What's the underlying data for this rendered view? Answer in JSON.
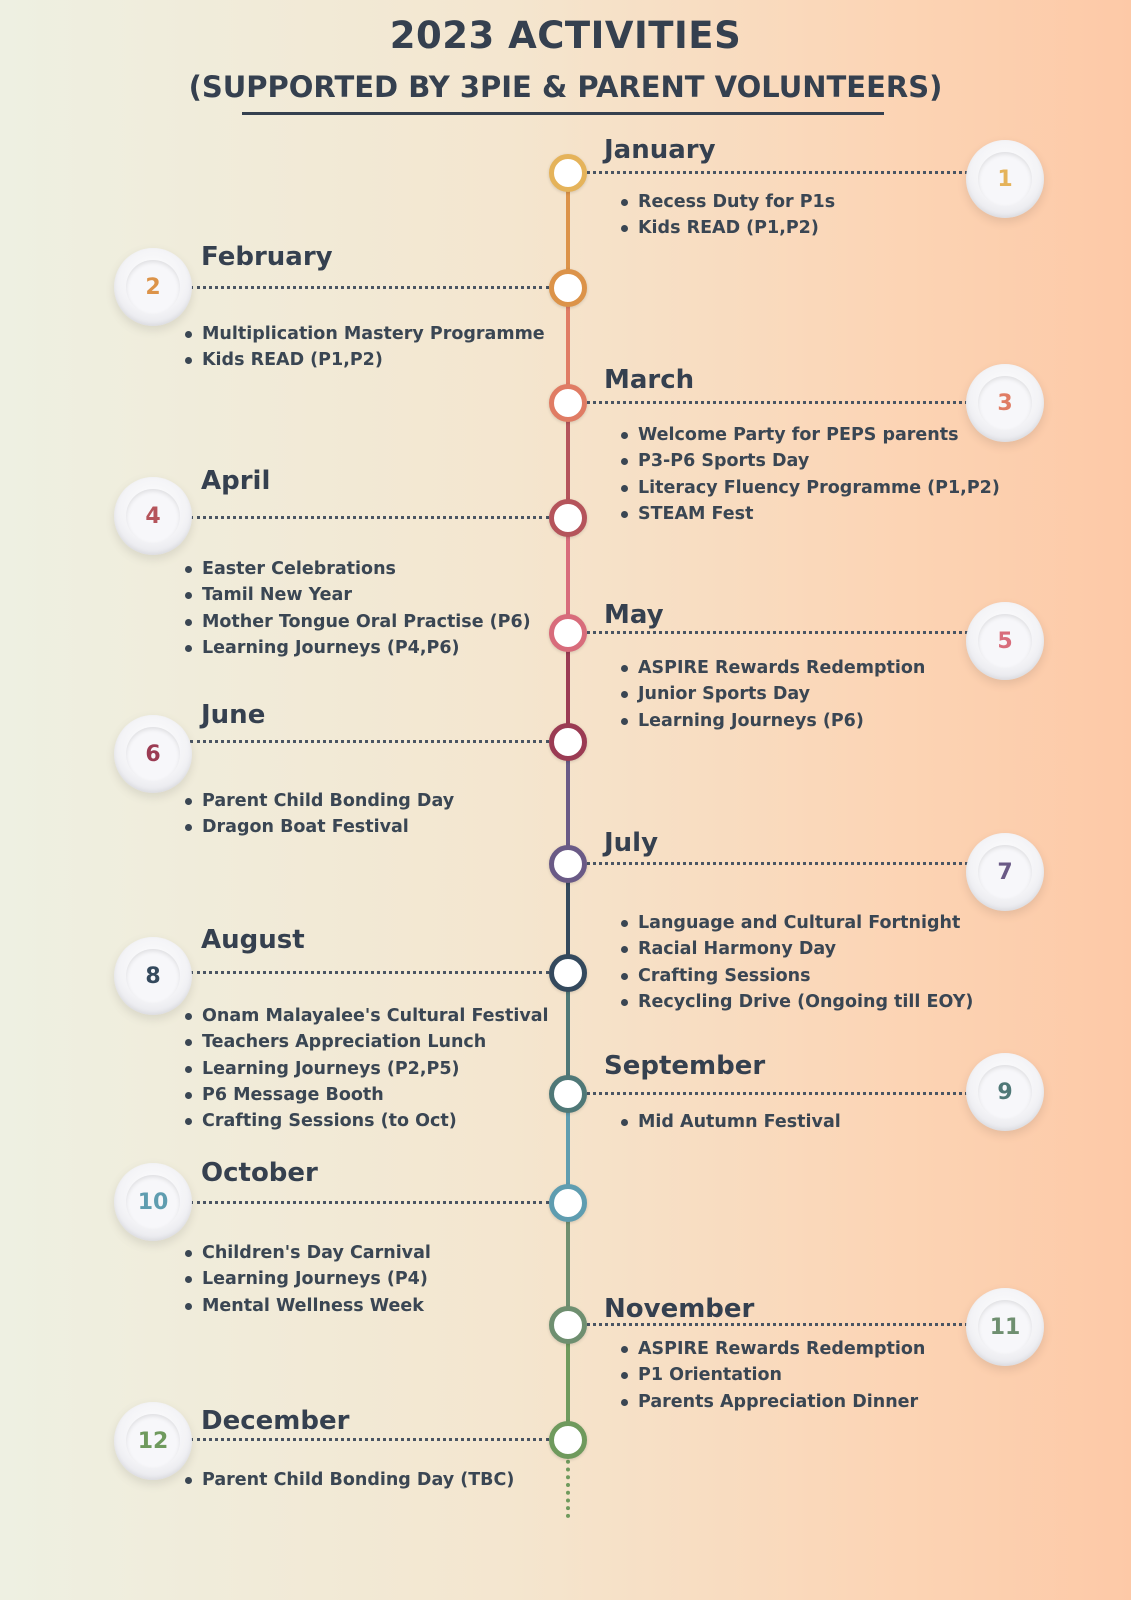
{
  "header": {
    "title": "2023 ACTIVITIES",
    "subtitle": "(SUPPORTED BY 3PIE & PARENT VOLUNTEERS)"
  },
  "months": [
    {
      "number": "1",
      "name": "January",
      "color": "#e5b35a",
      "items": [
        "Recess Duty for P1s",
        "Kids READ (P1,P2)"
      ]
    },
    {
      "number": "2",
      "name": "February",
      "color": "#dc9349",
      "items": [
        "Multiplication Mastery Programme",
        "Kids READ (P1,P2)"
      ]
    },
    {
      "number": "3",
      "name": "March",
      "color": "#e07c64",
      "items": [
        "Welcome Party for PEPS parents",
        "P3-P6 Sports Day",
        "Literacy Fluency Programme (P1,P2)",
        "STEAM Fest"
      ]
    },
    {
      "number": "4",
      "name": "April",
      "color": "#b5545b",
      "items": [
        "Easter Celebrations",
        "Tamil New Year",
        "Mother Tongue Oral Practise (P6)",
        "Learning Journeys (P4,P6)"
      ]
    },
    {
      "number": "5",
      "name": "May",
      "color": "#d86c7b",
      "items": [
        "ASPIRE Rewards Redemption",
        "Junior Sports Day",
        "Learning Journeys (P6)"
      ]
    },
    {
      "number": "6",
      "name": "June",
      "color": "#9b3b53",
      "items": [
        "Parent Child Bonding Day",
        "Dragon Boat Festival"
      ]
    },
    {
      "number": "7",
      "name": "July",
      "color": "#6a5a86",
      "items": [
        "Language and Cultural Fortnight",
        "Racial Harmony Day",
        "Crafting Sessions",
        "Recycling Drive (Ongoing till EOY)"
      ]
    },
    {
      "number": "8",
      "name": "August",
      "color": "#34495d",
      "items": [
        "Onam Malayalee's Cultural Festival",
        "Teachers Appreciation Lunch",
        "Learning Journeys (P2,P5)",
        "P6 Message Booth",
        "Crafting Sessions (to Oct)"
      ]
    },
    {
      "number": "9",
      "name": "September",
      "color": "#4f7877",
      "items": [
        "Mid Autumn Festival"
      ]
    },
    {
      "number": "10",
      "name": "October",
      "color": "#5f9db0",
      "items": [
        "Children's Day Carnival",
        "Learning Journeys (P4)",
        " Mental Wellness Week"
      ]
    },
    {
      "number": "11",
      "name": "November",
      "color": "#6f8f70",
      "items": [
        "ASPIRE Rewards Redemption",
        "P1 Orientation",
        "Parents Appreciation Dinner"
      ]
    },
    {
      "number": "12",
      "name": "December",
      "color": "#6f9a5d",
      "items": [
        "Parent Child Bonding Day (TBC)"
      ]
    }
  ]
}
